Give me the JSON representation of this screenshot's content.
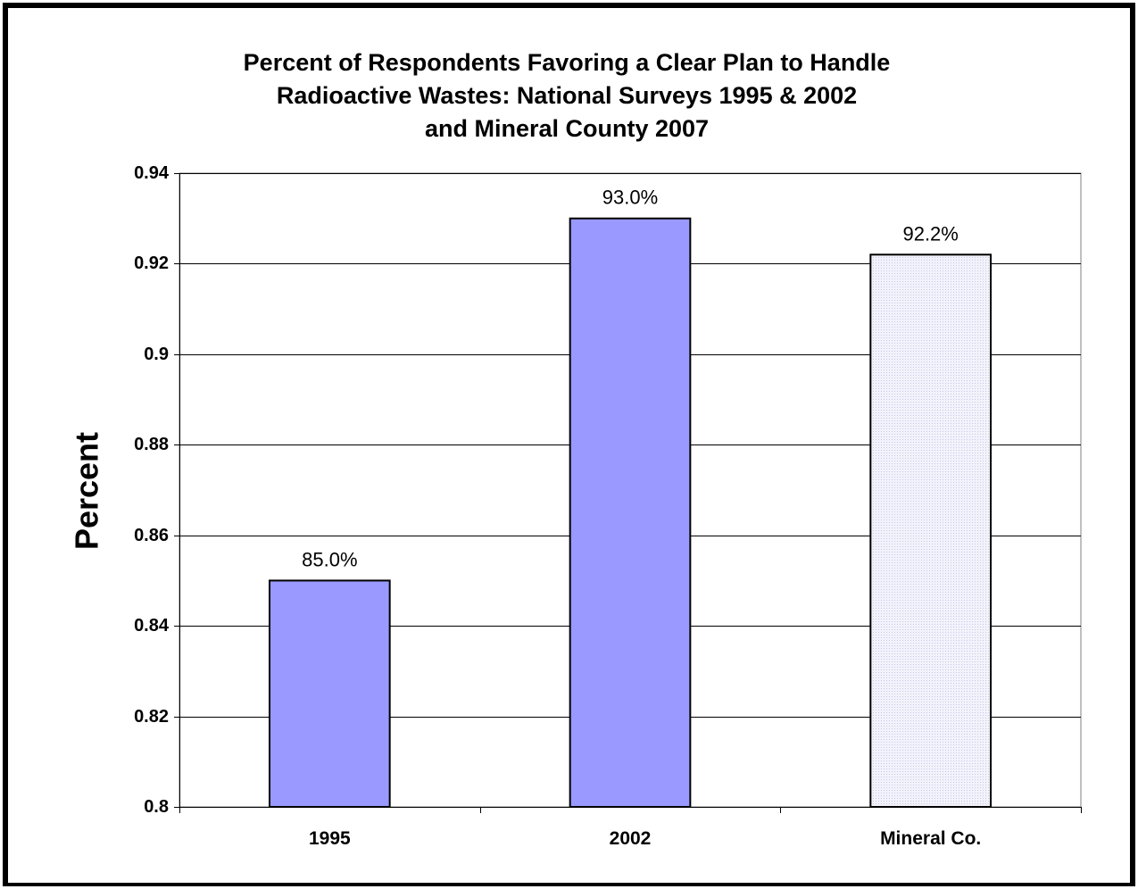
{
  "chart_data": {
    "type": "bar",
    "title_lines": [
      "Percent of Respondents Favoring a Clear Plan to Handle",
      "Radioactive Wastes: National Surveys 1995 & 2002",
      "and Mineral County 2007"
    ],
    "ylabel": "Percent",
    "xlabel": "",
    "categories": [
      "1995",
      "2002",
      "Mineral Co."
    ],
    "values": [
      0.85,
      0.93,
      0.922
    ],
    "data_labels": [
      "85.0%",
      "93.0%",
      "92.2%"
    ],
    "ylim": [
      0.8,
      0.94
    ],
    "yticks": [
      "0.8",
      "0.82",
      "0.84",
      "0.86",
      "0.88",
      "0.9",
      "0.92",
      "0.94"
    ],
    "grid": "horizontal",
    "bar_colors": [
      "#9999ff",
      "#9999ff",
      "#ececf8"
    ],
    "bar_border": "#000000",
    "legend": "none"
  }
}
